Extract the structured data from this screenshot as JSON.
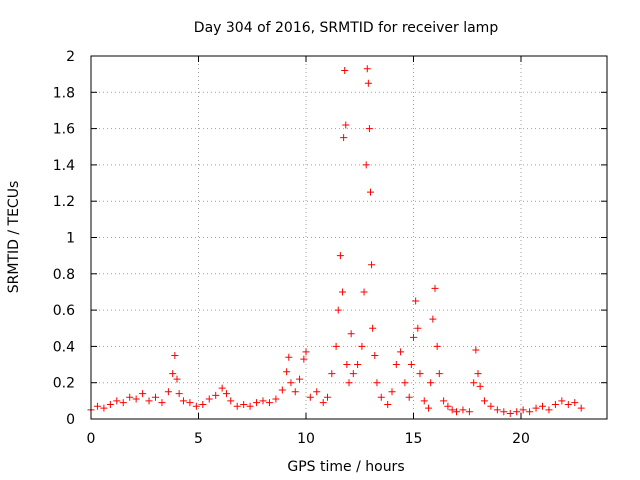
{
  "colors": {
    "series": "#ff0000",
    "axis": "#000000",
    "grid": "#a0a0a0",
    "background": "#ffffff"
  },
  "chart_data": {
    "type": "scatter",
    "title": "Day 304 of 2016, SRMTID for receiver lamp",
    "xlabel": "GPS time / hours",
    "ylabel": "SRMTID / TECUs",
    "xlim": [
      0,
      24
    ],
    "ylim": [
      0,
      2
    ],
    "xticks": [
      0,
      5,
      10,
      15,
      20
    ],
    "xtick_labels": [
      "0",
      "5",
      "10",
      "15",
      "20"
    ],
    "yticks": [
      0,
      0.2,
      0.4,
      0.6,
      0.8,
      1,
      1.2,
      1.4,
      1.6,
      1.8,
      2
    ],
    "ytick_labels": [
      "0",
      "0.2",
      "0.4",
      "0.6",
      "0.8",
      "1",
      "1.2",
      "1.4",
      "1.6",
      "1.8",
      "2"
    ],
    "grid": true,
    "marker": "+",
    "series": [
      {
        "name": "SRMTID",
        "x": [
          0.0,
          0.3,
          0.6,
          0.9,
          1.2,
          1.5,
          1.8,
          2.1,
          2.4,
          2.7,
          3.0,
          3.3,
          3.6,
          3.8,
          3.9,
          4.0,
          4.1,
          4.3,
          4.6,
          4.9,
          5.2,
          5.5,
          5.8,
          6.1,
          6.3,
          6.5,
          6.8,
          7.1,
          7.4,
          7.7,
          8.0,
          8.3,
          8.6,
          8.9,
          9.1,
          9.2,
          9.3,
          9.5,
          9.7,
          9.9,
          10.0,
          10.2,
          10.5,
          10.8,
          11.0,
          11.2,
          11.4,
          11.5,
          11.6,
          11.7,
          11.75,
          11.8,
          11.85,
          11.9,
          12.0,
          12.1,
          12.2,
          12.4,
          12.6,
          12.7,
          12.8,
          12.85,
          12.9,
          12.95,
          13.0,
          13.05,
          13.1,
          13.2,
          13.3,
          13.5,
          13.8,
          14.0,
          14.2,
          14.4,
          14.6,
          14.8,
          14.9,
          15.0,
          15.1,
          15.2,
          15.3,
          15.5,
          15.7,
          15.8,
          15.9,
          16.0,
          16.1,
          16.2,
          16.4,
          16.6,
          16.8,
          17.0,
          17.3,
          17.6,
          17.8,
          17.9,
          18.0,
          18.1,
          18.3,
          18.6,
          18.9,
          19.2,
          19.5,
          19.8,
          20.1,
          20.4,
          20.7,
          21.0,
          21.3,
          21.6,
          21.9,
          22.2,
          22.5,
          22.8
        ],
        "y": [
          0.05,
          0.07,
          0.06,
          0.08,
          0.1,
          0.09,
          0.12,
          0.11,
          0.14,
          0.1,
          0.12,
          0.09,
          0.15,
          0.25,
          0.35,
          0.22,
          0.14,
          0.1,
          0.09,
          0.07,
          0.08,
          0.11,
          0.13,
          0.17,
          0.14,
          0.1,
          0.07,
          0.08,
          0.07,
          0.09,
          0.1,
          0.09,
          0.11,
          0.16,
          0.26,
          0.34,
          0.2,
          0.15,
          0.22,
          0.33,
          0.37,
          0.12,
          0.15,
          0.09,
          0.12,
          0.25,
          0.4,
          0.6,
          0.9,
          0.7,
          1.55,
          1.92,
          1.62,
          0.3,
          0.2,
          0.47,
          0.25,
          0.3,
          0.4,
          0.7,
          1.4,
          1.93,
          1.85,
          1.6,
          1.25,
          0.85,
          0.5,
          0.35,
          0.2,
          0.12,
          0.08,
          0.15,
          0.3,
          0.37,
          0.2,
          0.12,
          0.3,
          0.45,
          0.65,
          0.5,
          0.25,
          0.1,
          0.06,
          0.2,
          0.55,
          0.72,
          0.4,
          0.25,
          0.1,
          0.07,
          0.05,
          0.04,
          0.05,
          0.04,
          0.2,
          0.38,
          0.25,
          0.18,
          0.1,
          0.07,
          0.05,
          0.04,
          0.03,
          0.04,
          0.05,
          0.04,
          0.06,
          0.07,
          0.05,
          0.08,
          0.1,
          0.08,
          0.09,
          0.06
        ]
      }
    ]
  }
}
